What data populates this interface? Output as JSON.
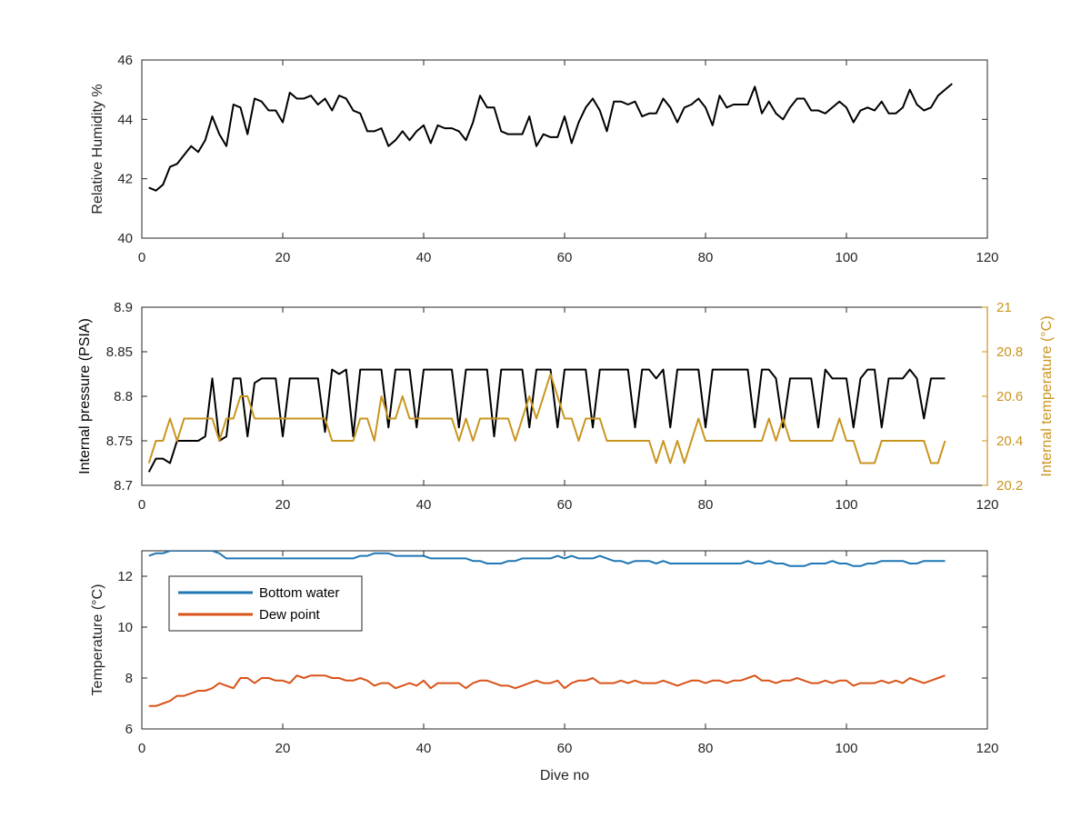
{
  "chart_data": [
    {
      "type": "line",
      "xlabel": "",
      "ylabel": "Relative Humidity %",
      "xlim": [
        0,
        120
      ],
      "ylim": [
        40,
        46
      ],
      "xticks": [
        0,
        20,
        40,
        60,
        80,
        100,
        120
      ],
      "yticks": [
        40,
        42,
        44,
        46
      ],
      "grid": false,
      "series": [
        {
          "color": "#000000",
          "x_start": 1,
          "values": [
            41.7,
            41.6,
            41.8,
            42.4,
            42.5,
            42.8,
            43.1,
            42.9,
            43.3,
            44.1,
            43.5,
            43.1,
            44.5,
            44.4,
            43.5,
            44.7,
            44.6,
            44.3,
            44.3,
            43.9,
            44.9,
            44.7,
            44.7,
            44.8,
            44.5,
            44.7,
            44.3,
            44.8,
            44.7,
            44.3,
            44.2,
            43.6,
            43.6,
            43.7,
            43.1,
            43.3,
            43.6,
            43.3,
            43.6,
            43.8,
            43.2,
            43.8,
            43.7,
            43.7,
            43.6,
            43.3,
            43.9,
            44.8,
            44.4,
            44.4,
            43.6,
            43.5,
            43.5,
            43.5,
            44.1,
            43.1,
            43.5,
            43.4,
            43.4,
            44.1,
            43.2,
            43.9,
            44.4,
            44.7,
            44.3,
            43.6,
            44.6,
            44.6,
            44.5,
            44.6,
            44.1,
            44.2,
            44.2,
            44.7,
            44.4,
            43.9,
            44.4,
            44.5,
            44.7,
            44.4,
            43.8,
            44.8,
            44.4,
            44.5,
            44.5,
            44.5,
            45.1,
            44.2,
            44.6,
            44.2,
            44.0,
            44.4,
            44.7,
            44.7,
            44.3,
            44.3,
            44.2,
            44.4,
            44.6,
            44.4,
            43.9,
            44.3,
            44.4,
            44.3,
            44.6,
            44.2,
            44.2,
            44.4,
            45.0,
            44.5,
            44.3,
            44.4,
            44.8,
            45.0,
            45.2
          ]
        }
      ]
    },
    {
      "type": "line",
      "xlabel": "",
      "ylabel": "Internal pressure (PSIA)",
      "ylabel_right": "Internal temperature (°C)",
      "xlim": [
        0,
        120
      ],
      "ylim": [
        8.7,
        8.9
      ],
      "ylim_right": [
        20.2,
        21
      ],
      "xticks": [
        0,
        20,
        40,
        60,
        80,
        100,
        120
      ],
      "yticks": [
        8.7,
        8.75,
        8.8,
        8.85,
        8.9
      ],
      "ytick_labels": [
        "8.7",
        "8.75",
        "8.8",
        "8.85",
        "8.9"
      ],
      "yticks_right": [
        20.2,
        20.4,
        20.6,
        20.8,
        21
      ],
      "ytick_labels_right": [
        "20.2",
        "20.4",
        "20.6",
        "20.8",
        "21"
      ],
      "grid": false,
      "series": [
        {
          "axis": "left",
          "color": "#000000",
          "x": [
            1,
            2,
            3,
            4,
            5,
            6,
            7,
            8,
            9,
            10,
            11,
            12,
            13,
            14,
            15,
            16,
            17,
            18,
            19,
            20,
            21,
            22,
            23,
            24,
            25,
            26,
            27,
            28,
            29,
            30,
            31,
            32,
            33,
            34,
            35,
            36,
            37,
            38,
            39,
            40,
            41,
            42,
            43,
            44,
            45,
            46,
            47,
            48,
            49,
            50,
            51,
            52,
            53,
            54,
            55,
            56,
            57,
            58,
            59,
            60,
            61,
            62,
            63,
            64,
            65,
            66,
            67,
            68,
            69,
            70,
            71,
            72,
            73,
            74,
            75,
            76,
            77,
            78,
            79,
            80,
            81,
            82,
            83,
            84,
            85,
            86,
            87,
            88,
            89,
            90,
            91,
            92,
            93,
            94,
            95,
            96,
            97,
            98,
            99,
            100,
            101,
            102,
            103,
            104,
            105,
            106,
            107,
            108,
            109,
            110,
            111,
            112,
            113,
            114
          ],
          "values": [
            8.715,
            8.73,
            8.73,
            8.725,
            8.75,
            8.75,
            8.75,
            8.75,
            8.755,
            8.82,
            8.75,
            8.755,
            8.82,
            8.82,
            8.755,
            8.815,
            8.82,
            8.82,
            8.82,
            8.755,
            8.82,
            8.82,
            8.82,
            8.82,
            8.82,
            8.76,
            8.83,
            8.825,
            8.83,
            8.755,
            8.83,
            8.83,
            8.83,
            8.83,
            8.765,
            8.83,
            8.83,
            8.83,
            8.765,
            8.83,
            8.83,
            8.83,
            8.83,
            8.83,
            8.765,
            8.83,
            8.83,
            8.83,
            8.83,
            8.755,
            8.83,
            8.83,
            8.83,
            8.83,
            8.765,
            8.83,
            8.83,
            8.83,
            8.765,
            8.83,
            8.83,
            8.83,
            8.83,
            8.765,
            8.83,
            8.83,
            8.83,
            8.83,
            8.83,
            8.765,
            8.83,
            8.83,
            8.82,
            8.83,
            8.765,
            8.83,
            8.83,
            8.83,
            8.83,
            8.765,
            8.83,
            8.83,
            8.83,
            8.83,
            8.83,
            8.83,
            8.765,
            8.83,
            8.83,
            8.82,
            8.765,
            8.82,
            8.82,
            8.82,
            8.82,
            8.765,
            8.83,
            8.82,
            8.82,
            8.82,
            8.765,
            8.82,
            8.83,
            8.83,
            8.765,
            8.82,
            8.82,
            8.82,
            8.83,
            8.82,
            8.775,
            8.82,
            8.82,
            8.82
          ]
        },
        {
          "axis": "right",
          "color": "#C9941E",
          "x": [
            1,
            2,
            3,
            4,
            5,
            6,
            7,
            8,
            9,
            10,
            11,
            12,
            13,
            14,
            15,
            16,
            17,
            18,
            19,
            20,
            21,
            22,
            23,
            24,
            25,
            26,
            27,
            28,
            29,
            30,
            31,
            32,
            33,
            34,
            35,
            36,
            37,
            38,
            39,
            40,
            41,
            42,
            43,
            44,
            45,
            46,
            47,
            48,
            49,
            50,
            51,
            52,
            53,
            54,
            55,
            56,
            57,
            58,
            59,
            60,
            61,
            62,
            63,
            64,
            65,
            66,
            67,
            68,
            69,
            70,
            71,
            72,
            73,
            74,
            75,
            76,
            77,
            78,
            79,
            80,
            81,
            82,
            83,
            84,
            85,
            86,
            87,
            88,
            89,
            90,
            91,
            92,
            93,
            94,
            95,
            96,
            97,
            98,
            99,
            100,
            101,
            102,
            103,
            104,
            105,
            106,
            107,
            108,
            109,
            110,
            111,
            112,
            113,
            114
          ],
          "values": [
            20.3,
            20.4,
            20.4,
            20.5,
            20.4,
            20.5,
            20.5,
            20.5,
            20.5,
            20.5,
            20.4,
            20.5,
            20.5,
            20.6,
            20.6,
            20.5,
            20.5,
            20.5,
            20.5,
            20.5,
            20.5,
            20.5,
            20.5,
            20.5,
            20.5,
            20.5,
            20.4,
            20.4,
            20.4,
            20.4,
            20.5,
            20.5,
            20.4,
            20.6,
            20.5,
            20.5,
            20.6,
            20.5,
            20.5,
            20.5,
            20.5,
            20.5,
            20.5,
            20.5,
            20.4,
            20.5,
            20.4,
            20.5,
            20.5,
            20.5,
            20.5,
            20.5,
            20.4,
            20.5,
            20.6,
            20.5,
            20.6,
            20.7,
            20.6,
            20.5,
            20.5,
            20.4,
            20.5,
            20.5,
            20.5,
            20.4,
            20.4,
            20.4,
            20.4,
            20.4,
            20.4,
            20.4,
            20.3,
            20.4,
            20.3,
            20.4,
            20.3,
            20.4,
            20.5,
            20.4,
            20.4,
            20.4,
            20.4,
            20.4,
            20.4,
            20.4,
            20.4,
            20.4,
            20.5,
            20.4,
            20.5,
            20.4,
            20.4,
            20.4,
            20.4,
            20.4,
            20.4,
            20.4,
            20.5,
            20.4,
            20.4,
            20.3,
            20.3,
            20.3,
            20.4,
            20.4,
            20.4,
            20.4,
            20.4,
            20.4,
            20.4,
            20.3,
            20.3,
            20.4
          ]
        }
      ]
    },
    {
      "type": "line",
      "xlabel": "Dive no",
      "ylabel": "Temperature (°C)",
      "xlim": [
        0,
        120
      ],
      "ylim": [
        6,
        13
      ],
      "xticks": [
        0,
        20,
        40,
        60,
        80,
        100,
        120
      ],
      "yticks": [
        6,
        8,
        10,
        12
      ],
      "grid": false,
      "legend_position": "upper-left",
      "series": [
        {
          "name": "Bottom water",
          "color": "#1F77B4",
          "x_start": 1,
          "values": [
            12.8,
            12.9,
            12.9,
            13.0,
            13.0,
            13.0,
            13.0,
            13.0,
            13.0,
            13.0,
            12.9,
            12.7,
            12.7,
            12.7,
            12.7,
            12.7,
            12.7,
            12.7,
            12.7,
            12.7,
            12.7,
            12.7,
            12.7,
            12.7,
            12.7,
            12.7,
            12.7,
            12.7,
            12.7,
            12.7,
            12.8,
            12.8,
            12.9,
            12.9,
            12.9,
            12.8,
            12.8,
            12.8,
            12.8,
            12.8,
            12.7,
            12.7,
            12.7,
            12.7,
            12.7,
            12.7,
            12.6,
            12.6,
            12.5,
            12.5,
            12.5,
            12.6,
            12.6,
            12.7,
            12.7,
            12.7,
            12.7,
            12.7,
            12.8,
            12.7,
            12.8,
            12.7,
            12.7,
            12.7,
            12.8,
            12.7,
            12.6,
            12.6,
            12.5,
            12.6,
            12.6,
            12.6,
            12.5,
            12.6,
            12.5,
            12.5,
            12.5,
            12.5,
            12.5,
            12.5,
            12.5,
            12.5,
            12.5,
            12.5,
            12.5,
            12.6,
            12.5,
            12.5,
            12.6,
            12.5,
            12.5,
            12.4,
            12.4,
            12.4,
            12.5,
            12.5,
            12.5,
            12.6,
            12.5,
            12.5,
            12.4,
            12.4,
            12.5,
            12.5,
            12.6,
            12.6,
            12.6,
            12.6,
            12.5,
            12.5,
            12.6,
            12.6,
            12.6,
            12.6
          ]
        },
        {
          "name": "Dew point",
          "color": "#D95319",
          "x_start": 1,
          "values": [
            6.9,
            6.9,
            7.0,
            7.1,
            7.3,
            7.3,
            7.4,
            7.5,
            7.5,
            7.6,
            7.8,
            7.7,
            7.6,
            8.0,
            8.0,
            7.8,
            8.0,
            8.0,
            7.9,
            7.9,
            7.8,
            8.1,
            8.0,
            8.1,
            8.1,
            8.1,
            8.0,
            8.0,
            7.9,
            7.9,
            8.0,
            7.9,
            7.7,
            7.8,
            7.8,
            7.6,
            7.7,
            7.8,
            7.7,
            7.9,
            7.6,
            7.8,
            7.8,
            7.8,
            7.8,
            7.6,
            7.8,
            7.9,
            7.9,
            7.8,
            7.7,
            7.7,
            7.6,
            7.7,
            7.8,
            7.9,
            7.8,
            7.8,
            7.9,
            7.6,
            7.8,
            7.9,
            7.9,
            8.0,
            7.8,
            7.8,
            7.8,
            7.9,
            7.8,
            7.9,
            7.8,
            7.8,
            7.8,
            7.9,
            7.8,
            7.7,
            7.8,
            7.9,
            7.9,
            7.8,
            7.9,
            7.9,
            7.8,
            7.9,
            7.9,
            8.0,
            8.1,
            7.9,
            7.9,
            7.8,
            7.9,
            7.9,
            8.0,
            7.9,
            7.8,
            7.8,
            7.9,
            7.8,
            7.9,
            7.9,
            7.7,
            7.8,
            7.8,
            7.8,
            7.9,
            7.8,
            7.9,
            7.8,
            8.0,
            7.9,
            7.8,
            7.9,
            8.0,
            8.1
          ]
        }
      ]
    }
  ]
}
